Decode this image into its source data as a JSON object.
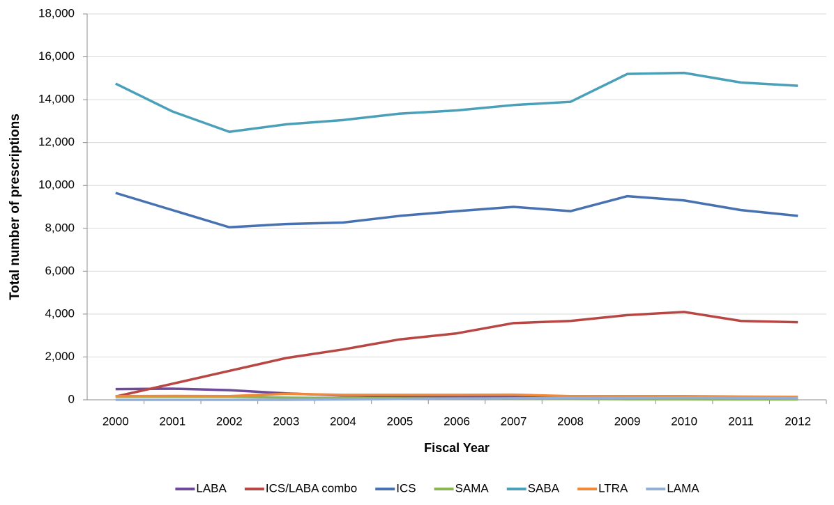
{
  "chart_data": {
    "type": "line",
    "y_label": "Total number of prescriptions",
    "x_label": "Fiscal Year",
    "categories": [
      "2000",
      "2001",
      "2002",
      "2003",
      "2004",
      "2005",
      "2006",
      "2007",
      "2008",
      "2009",
      "2010",
      "2011",
      "2012"
    ],
    "series": [
      {
        "name": "LABA",
        "color": "#6e4a9b",
        "values": [
          500,
          520,
          450,
          300,
          200,
          170,
          150,
          120,
          100,
          80,
          60,
          50,
          40
        ]
      },
      {
        "name": "ICS/LABA combo",
        "color": "#b84643",
        "values": [
          150,
          750,
          1350,
          1950,
          2350,
          2820,
          3100,
          3580,
          3680,
          3950,
          4100,
          3680,
          3620
        ]
      },
      {
        "name": "ICS",
        "color": "#4771b0",
        "values": [
          9650,
          8850,
          8050,
          8200,
          8270,
          8580,
          8800,
          9000,
          8800,
          9500,
          9300,
          8850,
          8580
        ]
      },
      {
        "name": "SAMA",
        "color": "#8bb652",
        "values": [
          150,
          150,
          150,
          100,
          80,
          70,
          60,
          50,
          40,
          30,
          30,
          20,
          20
        ]
      },
      {
        "name": "SABA",
        "color": "#4aa0b8",
        "values": [
          14750,
          13450,
          12500,
          12850,
          13050,
          13350,
          13500,
          13750,
          13900,
          15200,
          15250,
          14800,
          14650
        ]
      },
      {
        "name": "LTRA",
        "color": "#f08a3a",
        "values": [
          170,
          180,
          170,
          280,
          230,
          230,
          230,
          240,
          170,
          170,
          170,
          150,
          140
        ]
      },
      {
        "name": "LAMA",
        "color": "#94afd6",
        "values": [
          0,
          0,
          0,
          0,
          20,
          40,
          60,
          70,
          80,
          90,
          100,
          90,
          80
        ]
      }
    ],
    "ylim": [
      0,
      18000
    ],
    "yticks": [
      0,
      {
        "value": 2000,
        "label": "2,000"
      },
      {
        "value": 4000,
        "label": "4,000"
      },
      {
        "value": 6000,
        "label": "6,000"
      },
      {
        "value": 8000,
        "label": "8,000"
      },
      {
        "value": 10000,
        "label": "10,000"
      },
      {
        "value": 12000,
        "label": "12,000"
      },
      {
        "value": 14000,
        "label": "14,000"
      },
      {
        "value": 16000,
        "label": "16,000"
      },
      {
        "value": 18000,
        "label": "18,000"
      }
    ],
    "grid": true,
    "legend": "bottom"
  }
}
